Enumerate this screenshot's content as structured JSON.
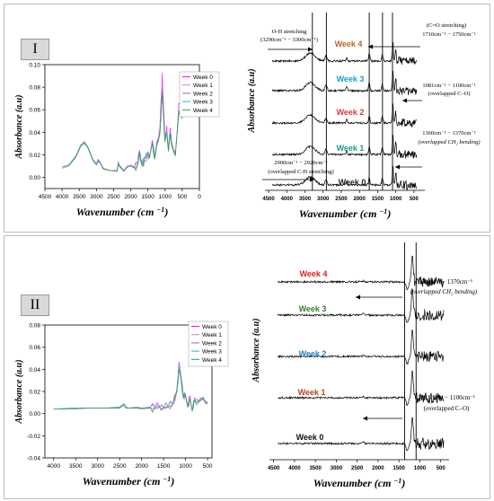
{
  "panels": [
    {
      "label": "I",
      "left_chart": {
        "ylabel": "Absorbance (a.u)",
        "xlabel_main": "Wavenumber (cm",
        "xlabel_sup": "−1",
        "xlabel_end": ")",
        "legend": [
          "Week 0",
          "Week 1",
          "Week 2",
          "Week 3",
          "Week 4"
        ]
      },
      "right_chart": {
        "ylabel": "Absorbance (a.u)",
        "xlabel_main": "Wavenumber (cm",
        "xlabel_sup": "−1",
        "xlabel_end": ")",
        "week_labels": [
          "Week 4",
          "Week 3",
          "Week 2",
          "Week 1",
          "Week 0"
        ],
        "annotations": {
          "oh_title": "O-H stretching",
          "oh_range": "(3290cm⁻¹ − 3300cm⁻¹)",
          "co_title": "(C=O stretching)",
          "co_range": "1710cm⁻¹ − 1750cm⁻¹",
          "c_o_range": "1081cm⁻¹ − 1100cm⁻¹",
          "c_o_note": "(overlapped C–O)",
          "ch2_range": "1360cm⁻¹ − 1370cm⁻¹",
          "ch2_note": "(overlapped CH₂ bending)",
          "ch_range": "2900cm⁻¹ − 2920cm⁻¹",
          "ch_note": "(overlapped C-H stretching)"
        }
      }
    },
    {
      "label": "II",
      "left_chart": {
        "ylabel": "Absorbance (a.u)",
        "xlabel_main": "Wavenumber (cm",
        "xlabel_sup": "−1",
        "xlabel_end": ")",
        "legend": [
          "Week 0",
          "Week 1",
          "Week 2",
          "Week 3",
          "Week 4"
        ]
      },
      "right_chart": {
        "ylabel": "Absorbance (a.u)",
        "xlabel_main": "Wavenumber (cm",
        "xlabel_sup": "−1",
        "xlabel_end": ")",
        "week_labels": [
          "Week 4",
          "Week 3",
          "Week 2",
          "Week 1",
          "Week 0"
        ],
        "annotations": {
          "ch2_range": "1360cm⁻¹ − 1370cm⁻¹",
          "ch2_note": "(overlapped CH₂ bending)",
          "c_o_range": "1081cm⁻¹ − 1100cm⁻¹",
          "c_o_note": "(overlapped C–O)"
        }
      }
    }
  ],
  "colors": {
    "week0": "#ff00ff",
    "week1": "#e377c2",
    "week2": "#9467bd",
    "week3": "#17becf",
    "week4": "#2ca02c",
    "label_week4_I": "#c0622a",
    "label_week3_I": "#17a2d0",
    "label_week2_I": "#d9383a",
    "label_week1_I": "#16a085",
    "label_week0_I": "#222222",
    "label_week4_II": "#e0201c",
    "label_week3_II": "#3d7a34",
    "label_week2_II": "#1f7fc4",
    "label_week1_II": "#b8431d",
    "label_week0_II": "#111111"
  },
  "chart_data": [
    {
      "type": "line",
      "panel": "I-left",
      "x_axis_ticks": [
        4500,
        4000,
        3500,
        3000,
        2500,
        2000,
        1500,
        1000,
        500,
        0
      ],
      "y_axis_ticks": [
        0.0,
        0.02,
        0.04,
        0.06,
        0.08,
        0.1
      ],
      "xlim": [
        4500,
        0
      ],
      "ylim": [
        -0.01,
        0.1
      ],
      "xlabel": "Wavenumber (cm−1)",
      "ylabel": "Absorbance (a.u)",
      "legend_position": "top-right",
      "x": [
        4000,
        3800,
        3600,
        3450,
        3350,
        3250,
        3100,
        3000,
        2950,
        2900,
        2800,
        2600,
        2400,
        2360,
        2340,
        2200,
        2100,
        2000,
        1900,
        1800,
        1740,
        1700,
        1650,
        1600,
        1500,
        1450,
        1370,
        1300,
        1240,
        1150,
        1100,
        1080,
        1050,
        1000,
        950,
        900,
        850,
        800,
        700,
        600,
        500
      ],
      "series": [
        {
          "name": "Week 0",
          "values": [
            0.009,
            0.011,
            0.018,
            0.028,
            0.031,
            0.027,
            0.016,
            0.012,
            0.016,
            0.014,
            0.008,
            0.006,
            0.006,
            0.014,
            0.011,
            0.006,
            0.01,
            0.011,
            0.009,
            0.012,
            0.024,
            0.015,
            0.011,
            0.017,
            0.023,
            0.019,
            0.033,
            0.018,
            0.032,
            0.044,
            0.078,
            0.093,
            0.067,
            0.035,
            0.046,
            0.026,
            0.044,
            0.03,
            0.022,
            0.066,
            0.058
          ]
        },
        {
          "name": "Week 1",
          "values": [
            0.009,
            0.011,
            0.019,
            0.029,
            0.032,
            0.027,
            0.015,
            0.011,
            0.015,
            0.013,
            0.008,
            0.006,
            0.006,
            0.012,
            0.01,
            0.006,
            0.009,
            0.01,
            0.009,
            0.011,
            0.022,
            0.014,
            0.01,
            0.016,
            0.021,
            0.018,
            0.031,
            0.017,
            0.03,
            0.041,
            0.072,
            0.082,
            0.06,
            0.033,
            0.042,
            0.024,
            0.041,
            0.028,
            0.02,
            0.06,
            0.055
          ]
        },
        {
          "name": "Week 2",
          "values": [
            0.008,
            0.01,
            0.018,
            0.028,
            0.031,
            0.026,
            0.015,
            0.011,
            0.015,
            0.013,
            0.007,
            0.006,
            0.005,
            0.012,
            0.01,
            0.005,
            0.009,
            0.01,
            0.008,
            0.011,
            0.021,
            0.013,
            0.01,
            0.015,
            0.02,
            0.017,
            0.03,
            0.016,
            0.028,
            0.039,
            0.07,
            0.079,
            0.058,
            0.032,
            0.04,
            0.023,
            0.039,
            0.027,
            0.019,
            0.058,
            0.052
          ]
        },
        {
          "name": "Week 3",
          "values": [
            0.009,
            0.011,
            0.019,
            0.029,
            0.031,
            0.027,
            0.016,
            0.012,
            0.015,
            0.013,
            0.008,
            0.006,
            0.006,
            0.013,
            0.011,
            0.006,
            0.009,
            0.01,
            0.009,
            0.011,
            0.023,
            0.014,
            0.011,
            0.016,
            0.022,
            0.018,
            0.031,
            0.017,
            0.03,
            0.04,
            0.068,
            0.077,
            0.057,
            0.032,
            0.041,
            0.024,
            0.04,
            0.028,
            0.02,
            0.059,
            0.054
          ]
        },
        {
          "name": "Week 4",
          "values": [
            0.009,
            0.011,
            0.018,
            0.028,
            0.03,
            0.026,
            0.015,
            0.011,
            0.014,
            0.013,
            0.008,
            0.006,
            0.006,
            0.012,
            0.01,
            0.006,
            0.009,
            0.01,
            0.009,
            0.011,
            0.022,
            0.014,
            0.01,
            0.016,
            0.021,
            0.018,
            0.03,
            0.016,
            0.029,
            0.038,
            0.066,
            0.074,
            0.056,
            0.031,
            0.039,
            0.023,
            0.038,
            0.027,
            0.019,
            0.057,
            0.052
          ]
        }
      ]
    },
    {
      "type": "line",
      "panel": "I-right",
      "x_axis_ticks": [
        4500,
        4000,
        3500,
        3000,
        2500,
        2000,
        1500,
        1000,
        500
      ],
      "xlim": [
        4600,
        200
      ],
      "xlabel": "Wavenumber (cm−1)",
      "ylabel": "Absorbance (a.u)",
      "reference_lines_cm": [
        3295,
        2910,
        1730,
        1365,
        1090
      ],
      "series_names": [
        "Week 4",
        "Week 3",
        "Week 2",
        "Week 1",
        "Week 0"
      ]
    },
    {
      "type": "line",
      "panel": "II-left",
      "x_axis_ticks": [
        4000,
        3500,
        3000,
        2500,
        2000,
        1500,
        1000,
        500
      ],
      "y_axis_ticks": [
        -0.04,
        -0.02,
        0.0,
        0.02,
        0.04,
        0.06,
        0.08
      ],
      "xlim": [
        4200,
        400
      ],
      "ylim": [
        -0.04,
        0.08
      ],
      "xlabel": "Wavenumber (cm−1)",
      "ylabel": "Absorbance (a.u)",
      "legend_position": "right",
      "x": [
        4000,
        3600,
        3200,
        2800,
        2500,
        2400,
        2360,
        2300,
        2100,
        2000,
        1800,
        1700,
        1600,
        1500,
        1400,
        1300,
        1200,
        1150,
        1100,
        1050,
        1000,
        950,
        900,
        850,
        800,
        700,
        600,
        500
      ],
      "series": [
        {
          "name": "Week 0",
          "values": [
            0.004,
            0.005,
            0.005,
            0.005,
            0.006,
            0.009,
            0.006,
            0.005,
            0.006,
            0.005,
            0.006,
            0.006,
            0.007,
            0.006,
            0.007,
            0.009,
            0.022,
            0.047,
            0.033,
            0.016,
            0.018,
            0.007,
            0.016,
            0.003,
            0.014,
            0.012,
            0.015,
            0.01
          ]
        },
        {
          "name": "Week 1",
          "values": [
            0.004,
            0.005,
            0.005,
            0.005,
            0.005,
            0.008,
            0.006,
            0.005,
            0.005,
            0.005,
            0.005,
            0.006,
            0.006,
            0.006,
            0.006,
            0.008,
            0.02,
            0.043,
            0.031,
            0.015,
            0.017,
            0.006,
            0.015,
            0.002,
            0.013,
            0.011,
            0.014,
            0.009
          ]
        },
        {
          "name": "Week 2",
          "values": [
            0.004,
            0.004,
            0.005,
            0.005,
            0.005,
            0.008,
            0.005,
            0.005,
            0.005,
            0.005,
            0.005,
            0.005,
            0.006,
            0.005,
            0.006,
            0.008,
            0.019,
            0.041,
            0.03,
            0.014,
            0.016,
            0.006,
            0.014,
            0.002,
            0.012,
            0.011,
            0.013,
            0.009
          ]
        },
        {
          "name": "Week 3",
          "values": [
            0.004,
            0.005,
            0.005,
            0.005,
            0.006,
            0.009,
            0.006,
            0.005,
            0.005,
            0.005,
            0.006,
            0.006,
            0.006,
            0.006,
            0.007,
            0.009,
            0.021,
            0.044,
            0.032,
            0.015,
            0.017,
            0.007,
            0.015,
            0.003,
            0.013,
            0.012,
            0.014,
            0.01
          ]
        },
        {
          "name": "Week 4",
          "values": [
            0.004,
            0.004,
            0.005,
            0.005,
            0.005,
            0.008,
            0.005,
            0.005,
            0.005,
            0.004,
            0.005,
            0.005,
            0.006,
            0.005,
            0.006,
            0.008,
            0.019,
            0.04,
            0.029,
            0.014,
            0.016,
            0.006,
            0.014,
            0.002,
            0.012,
            0.01,
            0.013,
            0.009
          ]
        }
      ]
    },
    {
      "type": "line",
      "panel": "II-right",
      "x_axis_ticks": [
        4500,
        4000,
        3500,
        3000,
        2500,
        2000,
        1500,
        1000,
        500
      ],
      "xlim": [
        4600,
        300
      ],
      "xlabel": "Wavenumber (cm−1)",
      "ylabel": "Absorbance (a.u)",
      "reference_lines_cm": [
        1365,
        1090
      ],
      "series_names": [
        "Week 4",
        "Week 3",
        "Week 2",
        "Week 1",
        "Week 0"
      ]
    }
  ]
}
